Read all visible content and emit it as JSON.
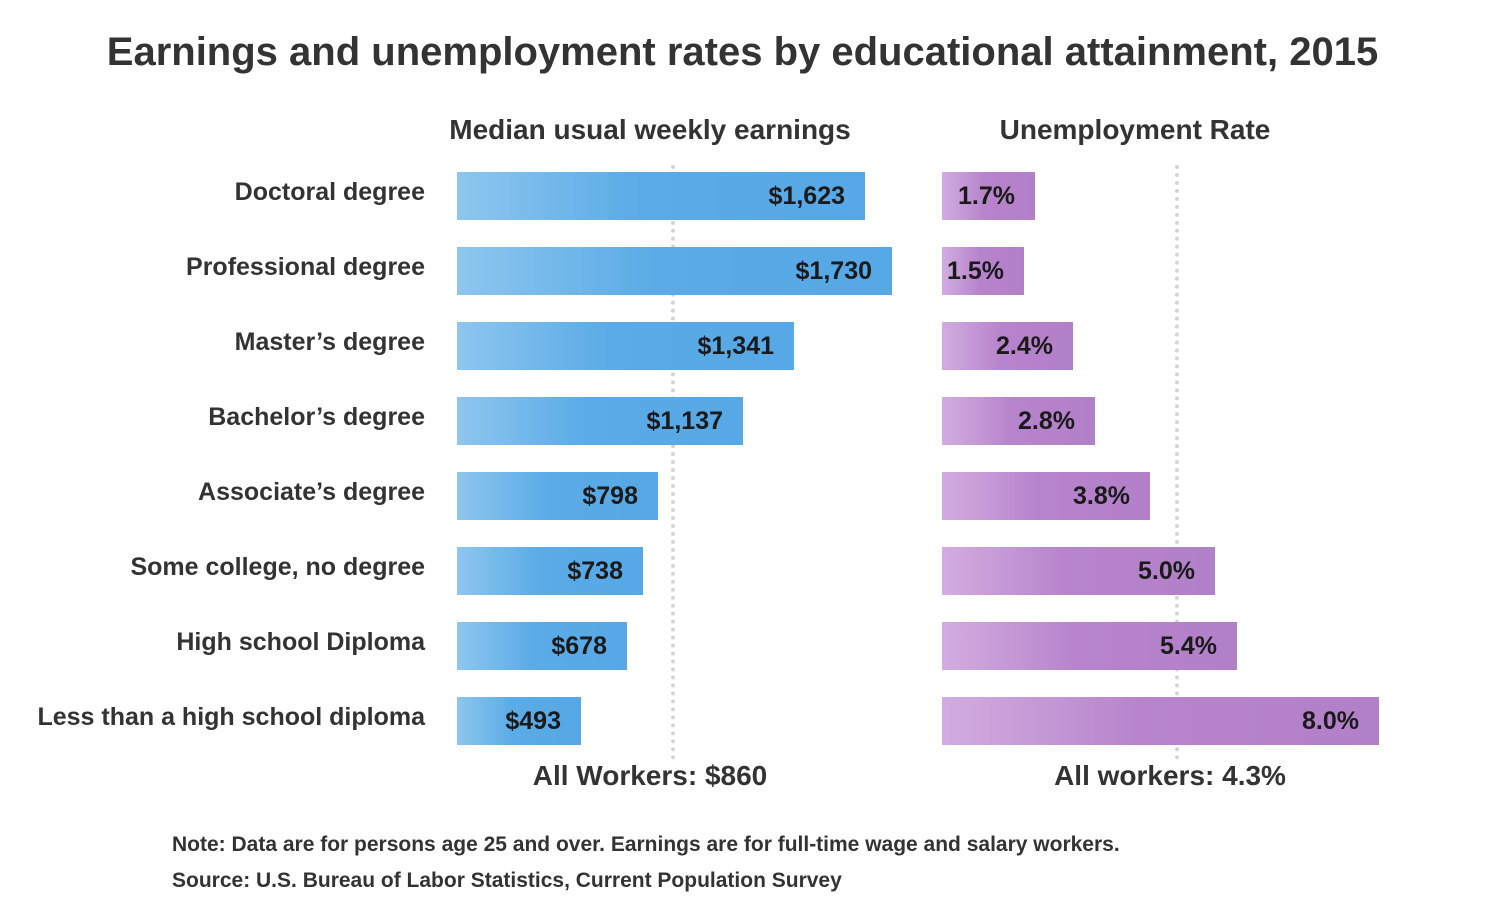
{
  "chart_data": {
    "title": "Earnings and unemployment rates by educational attainment, 2015",
    "categories": [
      "Doctoral degree",
      "Professional degree",
      "Master’s degree",
      "Bachelor’s degree",
      "Associate’s degree",
      "Some college, no degree",
      "High school Diploma",
      "Less than a high school diploma"
    ],
    "panels": [
      {
        "id": "earnings",
        "type": "bar",
        "orientation": "horizontal",
        "title": "Median usual weekly earnings",
        "values": [
          1623,
          1730,
          1341,
          1137,
          798,
          738,
          678,
          493
        ],
        "value_labels": [
          "$1,623",
          "$1,730",
          "$1,341",
          "$1,137",
          "$798",
          "$738",
          "$678",
          "$493"
        ],
        "reference": {
          "value": 860,
          "label": "All Workers: $860"
        },
        "xlim": [
          0,
          1730
        ],
        "color": "#56a8e6"
      },
      {
        "id": "unemployment",
        "type": "bar",
        "orientation": "horizontal",
        "title": "Unemployment Rate",
        "values": [
          1.7,
          1.5,
          2.4,
          2.8,
          3.8,
          5.0,
          5.4,
          8.0
        ],
        "value_labels": [
          "1.7%",
          "1.5%",
          "2.4%",
          "2.8%",
          "3.8%",
          "5.0%",
          "5.4%",
          "8.0%"
        ],
        "reference": {
          "value": 4.3,
          "label": "All workers: 4.3%"
        },
        "xlim": [
          0,
          8.0
        ],
        "color": "#b27fc9"
      }
    ],
    "grid": false,
    "legend": "none"
  },
  "footer": {
    "note": "Note: Data are for persons age 25 and over. Earnings are for full-time wage and salary workers.",
    "source": "Source: U.S. Bureau of Labor Statistics, Current Population Survey"
  }
}
